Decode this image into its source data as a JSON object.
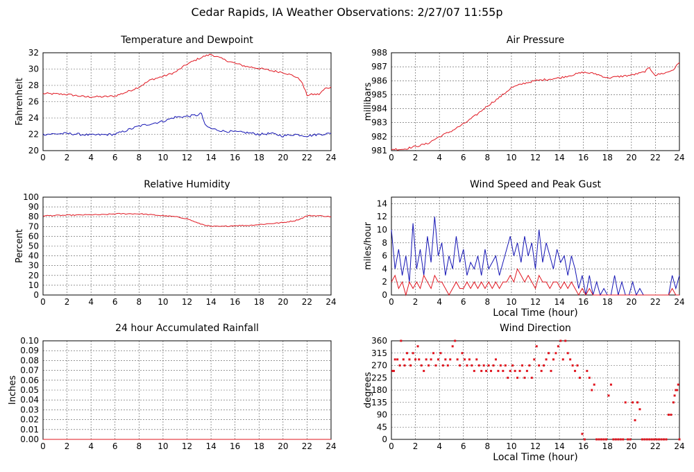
{
  "page_title": "Cedar Rapids, IA Weather Observations: 2/27/07 11:55p",
  "chart_data": [
    {
      "id": "temp",
      "type": "line",
      "title": "Temperature and Dewpoint",
      "ylabel": "Fahrenheit",
      "xlabel": "",
      "xlim": [
        0,
        24
      ],
      "ylim": [
        20,
        32
      ],
      "xticks": [
        0,
        2,
        4,
        6,
        8,
        10,
        12,
        14,
        16,
        18,
        20,
        22,
        24
      ],
      "yticks": [
        20,
        22,
        24,
        26,
        28,
        30,
        32
      ],
      "grid": true,
      "series": [
        {
          "color": "#e0141e",
          "noise": 0.12,
          "x": [
            0,
            2,
            3.5,
            5,
            6,
            7,
            8,
            9,
            10,
            11,
            12,
            13,
            13.5,
            14,
            15,
            16,
            17,
            18,
            19,
            20,
            21,
            21.5,
            22,
            22.5,
            23,
            23.5,
            24
          ],
          "y": [
            27.0,
            26.9,
            26.6,
            26.6,
            26.7,
            27.2,
            27.8,
            28.7,
            29.1,
            29.6,
            30.6,
            31.3,
            31.6,
            31.8,
            31.2,
            30.7,
            30.3,
            30.1,
            29.8,
            29.6,
            29.1,
            28.6,
            26.8,
            26.9,
            26.9,
            27.6,
            27.8
          ]
        },
        {
          "color": "#1414b4",
          "noise": 0.14,
          "x": [
            0,
            2,
            4,
            6,
            7,
            8,
            9,
            10,
            11,
            12,
            13,
            13.2,
            13.5,
            14,
            15,
            16,
            17,
            18,
            19,
            20,
            21,
            22,
            23,
            24
          ],
          "y": [
            22.0,
            22.1,
            21.9,
            22.0,
            22.5,
            23.0,
            23.3,
            23.6,
            24.1,
            24.2,
            24.4,
            24.6,
            23.1,
            22.7,
            22.4,
            22.3,
            22.2,
            22.0,
            22.1,
            21.8,
            22.0,
            21.8,
            22.0,
            22.1
          ]
        }
      ]
    },
    {
      "id": "pressure",
      "type": "line",
      "title": "Air Pressure",
      "ylabel": "millibars",
      "xlabel": "",
      "xlim": [
        0,
        24
      ],
      "ylim": [
        981,
        988
      ],
      "xticks": [
        0,
        2,
        4,
        6,
        8,
        10,
        12,
        14,
        16,
        18,
        20,
        22,
        24
      ],
      "yticks": [
        981,
        982,
        983,
        984,
        985,
        986,
        987,
        988
      ],
      "grid": true,
      "series": [
        {
          "color": "#e0141e",
          "noise": 0.07,
          "x": [
            0,
            1,
            2,
            3,
            4,
            5,
            6,
            7,
            8,
            9,
            10,
            11,
            12,
            13,
            14,
            15,
            16,
            17,
            18,
            19,
            20,
            21,
            21.5,
            22,
            23,
            23.5,
            24
          ],
          "y": [
            981.1,
            981.1,
            981.3,
            981.5,
            982.0,
            982.4,
            982.9,
            983.5,
            984.2,
            984.8,
            985.5,
            985.8,
            986.0,
            986.1,
            986.2,
            986.4,
            986.6,
            986.5,
            986.2,
            986.3,
            986.4,
            986.6,
            986.9,
            986.4,
            986.6,
            986.8,
            987.3
          ]
        }
      ]
    },
    {
      "id": "humidity",
      "type": "line",
      "title": "Relative Humidity",
      "ylabel": "Percent",
      "xlabel": "",
      "xlim": [
        0,
        24
      ],
      "ylim": [
        0,
        100
      ],
      "xticks": [
        0,
        2,
        4,
        6,
        8,
        10,
        12,
        14,
        16,
        18,
        20,
        22,
        24
      ],
      "yticks": [
        0,
        10,
        20,
        30,
        40,
        50,
        60,
        70,
        80,
        90,
        100
      ],
      "grid": true,
      "series": [
        {
          "color": "#e0141e",
          "noise": 0.5,
          "x": [
            0,
            2,
            4,
            5,
            6,
            7,
            8,
            9,
            10,
            11,
            12,
            13,
            14,
            15,
            16,
            17,
            18,
            19,
            20,
            21,
            21.5,
            22,
            23,
            24
          ],
          "y": [
            81,
            81.5,
            82,
            82,
            83,
            83,
            83,
            82,
            81,
            80,
            78,
            73,
            70,
            70,
            71,
            71,
            72,
            73,
            74,
            76,
            78,
            81,
            81,
            80
          ]
        }
      ]
    },
    {
      "id": "wind",
      "type": "line",
      "title": "Wind Speed and Peak Gust",
      "ylabel": "miles/hour",
      "xlabel": "Local Time (hour)",
      "xlim": [
        0,
        24
      ],
      "ylim": [
        0,
        15
      ],
      "xticks": [
        0,
        2,
        4,
        6,
        8,
        10,
        12,
        14,
        16,
        18,
        20,
        22,
        24
      ],
      "yticks": [
        0,
        2,
        4,
        6,
        8,
        10,
        12,
        14
      ],
      "grid": true,
      "series": [
        {
          "color": "#1414b4",
          "noise": 0,
          "x": [
            0,
            0.3,
            0.6,
            0.9,
            1.2,
            1.5,
            1.8,
            2.1,
            2.4,
            2.7,
            3.0,
            3.3,
            3.6,
            3.9,
            4.2,
            4.5,
            4.8,
            5.1,
            5.4,
            5.7,
            6.0,
            6.3,
            6.6,
            6.9,
            7.2,
            7.5,
            7.8,
            8.1,
            8.4,
            8.7,
            9.0,
            9.3,
            9.6,
            9.9,
            10.2,
            10.5,
            10.8,
            11.1,
            11.4,
            11.7,
            12.0,
            12.3,
            12.6,
            12.9,
            13.2,
            13.5,
            13.8,
            14.1,
            14.4,
            14.7,
            15.0,
            15.3,
            15.6,
            15.9,
            16.2,
            16.5,
            16.8,
            17.1,
            17.4,
            17.7,
            18.0,
            18.3,
            18.6,
            18.9,
            19.2,
            19.5,
            19.8,
            20.1,
            20.4,
            20.7,
            21.0,
            21.3,
            21.6,
            21.9,
            22.2,
            22.5,
            22.8,
            23.1,
            23.4,
            23.7,
            24.0
          ],
          "y": [
            10,
            4,
            7,
            3,
            6,
            2,
            11,
            4,
            7,
            3,
            9,
            5,
            12,
            6,
            8,
            3,
            6,
            4,
            9,
            5,
            7,
            3,
            5,
            4,
            6,
            3,
            7,
            4,
            5,
            6,
            3,
            5,
            7,
            9,
            6,
            8,
            5,
            9,
            6,
            8,
            4,
            10,
            5,
            8,
            6,
            4,
            7,
            5,
            6,
            3,
            6,
            4,
            1,
            3,
            0,
            3,
            0,
            2,
            0,
            1,
            0,
            0,
            3,
            0,
            2,
            0,
            0,
            2,
            0,
            1,
            0,
            0,
            0,
            0,
            0,
            0,
            0,
            0,
            3,
            1,
            3
          ]
        },
        {
          "color": "#e0141e",
          "noise": 0,
          "x": [
            0,
            0.3,
            0.6,
            0.9,
            1.2,
            1.5,
            1.8,
            2.1,
            2.4,
            2.7,
            3.0,
            3.3,
            3.6,
            3.9,
            4.2,
            4.5,
            4.8,
            5.1,
            5.4,
            5.7,
            6.0,
            6.3,
            6.6,
            6.9,
            7.2,
            7.5,
            7.8,
            8.1,
            8.4,
            8.7,
            9.0,
            9.3,
            9.6,
            9.9,
            10.2,
            10.5,
            10.8,
            11.1,
            11.4,
            11.7,
            12.0,
            12.3,
            12.6,
            12.9,
            13.2,
            13.5,
            13.8,
            14.1,
            14.4,
            14.7,
            15.0,
            15.3,
            15.6,
            15.9,
            16.2,
            16.5,
            16.8,
            17.1,
            17.4,
            17.7,
            18.0,
            18.3,
            18.6,
            18.9,
            19.2,
            19.5,
            19.8,
            20.1,
            20.4,
            20.7,
            21.0,
            21.3,
            21.6,
            21.9,
            22.2,
            22.5,
            22.8,
            23.1,
            23.4,
            23.7,
            24.0
          ],
          "y": [
            2,
            3,
            1,
            2,
            0,
            2,
            1,
            2,
            1,
            3,
            2,
            1,
            3,
            2,
            2,
            1,
            0,
            1,
            2,
            1,
            1,
            2,
            1,
            2,
            1,
            2,
            1,
            2,
            1,
            2,
            1,
            2,
            2,
            3,
            2,
            4,
            3,
            2,
            3,
            2,
            1,
            3,
            2,
            2,
            1,
            2,
            2,
            1,
            2,
            1,
            2,
            1,
            0,
            1,
            0,
            1,
            0,
            0,
            0,
            0,
            0,
            0,
            0,
            0,
            0,
            0,
            0,
            0,
            0,
            0,
            0,
            0,
            0,
            0,
            0,
            0,
            0,
            0,
            1,
            0,
            0
          ]
        }
      ]
    },
    {
      "id": "rain",
      "type": "line",
      "title": "24 hour Accumulated Rainfall",
      "ylabel": "Inches",
      "xlabel": "",
      "xlim": [
        0,
        24
      ],
      "ylim": [
        0,
        0.1
      ],
      "xticks": [
        0,
        2,
        4,
        6,
        8,
        10,
        12,
        14,
        16,
        18,
        20,
        22,
        24
      ],
      "yticks": [
        0,
        0.01,
        0.02,
        0.03,
        0.04,
        0.05,
        0.06,
        0.07,
        0.08,
        0.09,
        0.1
      ],
      "ytick_labels": [
        "0.00",
        "0.01",
        "0.02",
        "0.03",
        "0.04",
        "0.05",
        "0.06",
        "0.07",
        "0.08",
        "0.09",
        "0.10"
      ],
      "grid": true,
      "series": [
        {
          "color": "#e0141e",
          "noise": 0,
          "x": [
            0,
            24
          ],
          "y": [
            0,
            0
          ]
        }
      ]
    },
    {
      "id": "direction",
      "type": "scatter",
      "title": "Wind Direction",
      "ylabel": "degrees",
      "xlabel": "Local Time (hour)",
      "xlim": [
        0,
        24
      ],
      "ylim": [
        0,
        360
      ],
      "xticks": [
        0,
        2,
        4,
        6,
        8,
        10,
        12,
        14,
        16,
        18,
        20,
        22,
        24
      ],
      "yticks": [
        0,
        45,
        90,
        135,
        180,
        225,
        270,
        315,
        360
      ],
      "grid": true,
      "marker_color": "#e0141e",
      "points": [
        [
          0.1,
          250
        ],
        [
          0.2,
          250
        ],
        [
          0.3,
          292
        ],
        [
          0.5,
          292
        ],
        [
          0.7,
          270
        ],
        [
          0.8,
          360
        ],
        [
          1.0,
          292
        ],
        [
          1.1,
          270
        ],
        [
          1.3,
          315
        ],
        [
          1.5,
          292
        ],
        [
          1.6,
          270
        ],
        [
          1.8,
          315
        ],
        [
          2.0,
          292
        ],
        [
          2.2,
          340
        ],
        [
          2.3,
          292
        ],
        [
          2.5,
          270
        ],
        [
          2.7,
          250
        ],
        [
          2.9,
          292
        ],
        [
          3.1,
          270
        ],
        [
          3.3,
          292
        ],
        [
          3.5,
          315
        ],
        [
          3.7,
          270
        ],
        [
          3.9,
          292
        ],
        [
          4.1,
          315
        ],
        [
          4.3,
          270
        ],
        [
          4.5,
          292
        ],
        [
          4.7,
          270
        ],
        [
          4.9,
          292
        ],
        [
          5.1,
          340
        ],
        [
          5.3,
          360
        ],
        [
          5.5,
          292
        ],
        [
          5.7,
          270
        ],
        [
          5.9,
          315
        ],
        [
          6.1,
          292
        ],
        [
          6.3,
          270
        ],
        [
          6.5,
          292
        ],
        [
          6.7,
          270
        ],
        [
          6.9,
          250
        ],
        [
          7.1,
          292
        ],
        [
          7.3,
          270
        ],
        [
          7.5,
          250
        ],
        [
          7.7,
          270
        ],
        [
          7.9,
          250
        ],
        [
          8.1,
          270
        ],
        [
          8.3,
          250
        ],
        [
          8.5,
          270
        ],
        [
          8.7,
          292
        ],
        [
          8.9,
          250
        ],
        [
          9.1,
          270
        ],
        [
          9.3,
          250
        ],
        [
          9.5,
          270
        ],
        [
          9.7,
          225
        ],
        [
          9.9,
          250
        ],
        [
          10.1,
          270
        ],
        [
          10.3,
          250
        ],
        [
          10.5,
          225
        ],
        [
          10.7,
          250
        ],
        [
          10.9,
          270
        ],
        [
          11.1,
          225
        ],
        [
          11.3,
          250
        ],
        [
          11.5,
          270
        ],
        [
          11.7,
          225
        ],
        [
          11.9,
          292
        ],
        [
          12.1,
          340
        ],
        [
          12.3,
          270
        ],
        [
          12.5,
          250
        ],
        [
          12.7,
          270
        ],
        [
          12.9,
          292
        ],
        [
          13.1,
          315
        ],
        [
          13.3,
          250
        ],
        [
          13.5,
          292
        ],
        [
          13.7,
          315
        ],
        [
          13.9,
          340
        ],
        [
          14.1,
          360
        ],
        [
          14.3,
          292
        ],
        [
          14.5,
          360
        ],
        [
          14.7,
          315
        ],
        [
          14.9,
          292
        ],
        [
          15.1,
          270
        ],
        [
          15.3,
          250
        ],
        [
          15.5,
          270
        ],
        [
          15.7,
          225
        ],
        [
          15.9,
          20
        ],
        [
          16.1,
          0
        ],
        [
          16.3,
          250
        ],
        [
          16.5,
          225
        ],
        [
          16.7,
          180
        ],
        [
          16.9,
          200
        ],
        [
          17.1,
          0
        ],
        [
          17.3,
          0
        ],
        [
          17.5,
          0
        ],
        [
          17.7,
          0
        ],
        [
          17.9,
          0
        ],
        [
          18.1,
          160
        ],
        [
          18.3,
          200
        ],
        [
          18.5,
          0
        ],
        [
          18.7,
          0
        ],
        [
          18.9,
          0
        ],
        [
          19.1,
          0
        ],
        [
          19.3,
          0
        ],
        [
          19.5,
          135
        ],
        [
          19.7,
          0
        ],
        [
          19.9,
          0
        ],
        [
          20.1,
          135
        ],
        [
          20.3,
          70
        ],
        [
          20.5,
          135
        ],
        [
          20.7,
          110
        ],
        [
          20.9,
          0
        ],
        [
          21.1,
          0
        ],
        [
          21.3,
          0
        ],
        [
          21.5,
          0
        ],
        [
          21.7,
          0
        ],
        [
          21.9,
          0
        ],
        [
          22.1,
          0
        ],
        [
          22.3,
          0
        ],
        [
          22.5,
          0
        ],
        [
          22.7,
          0
        ],
        [
          22.9,
          0
        ],
        [
          23.1,
          90
        ],
        [
          23.3,
          90
        ],
        [
          23.5,
          135
        ],
        [
          23.6,
          160
        ],
        [
          23.7,
          180
        ],
        [
          23.8,
          180
        ],
        [
          23.9,
          200
        ],
        [
          24.0,
          0
        ]
      ]
    }
  ]
}
